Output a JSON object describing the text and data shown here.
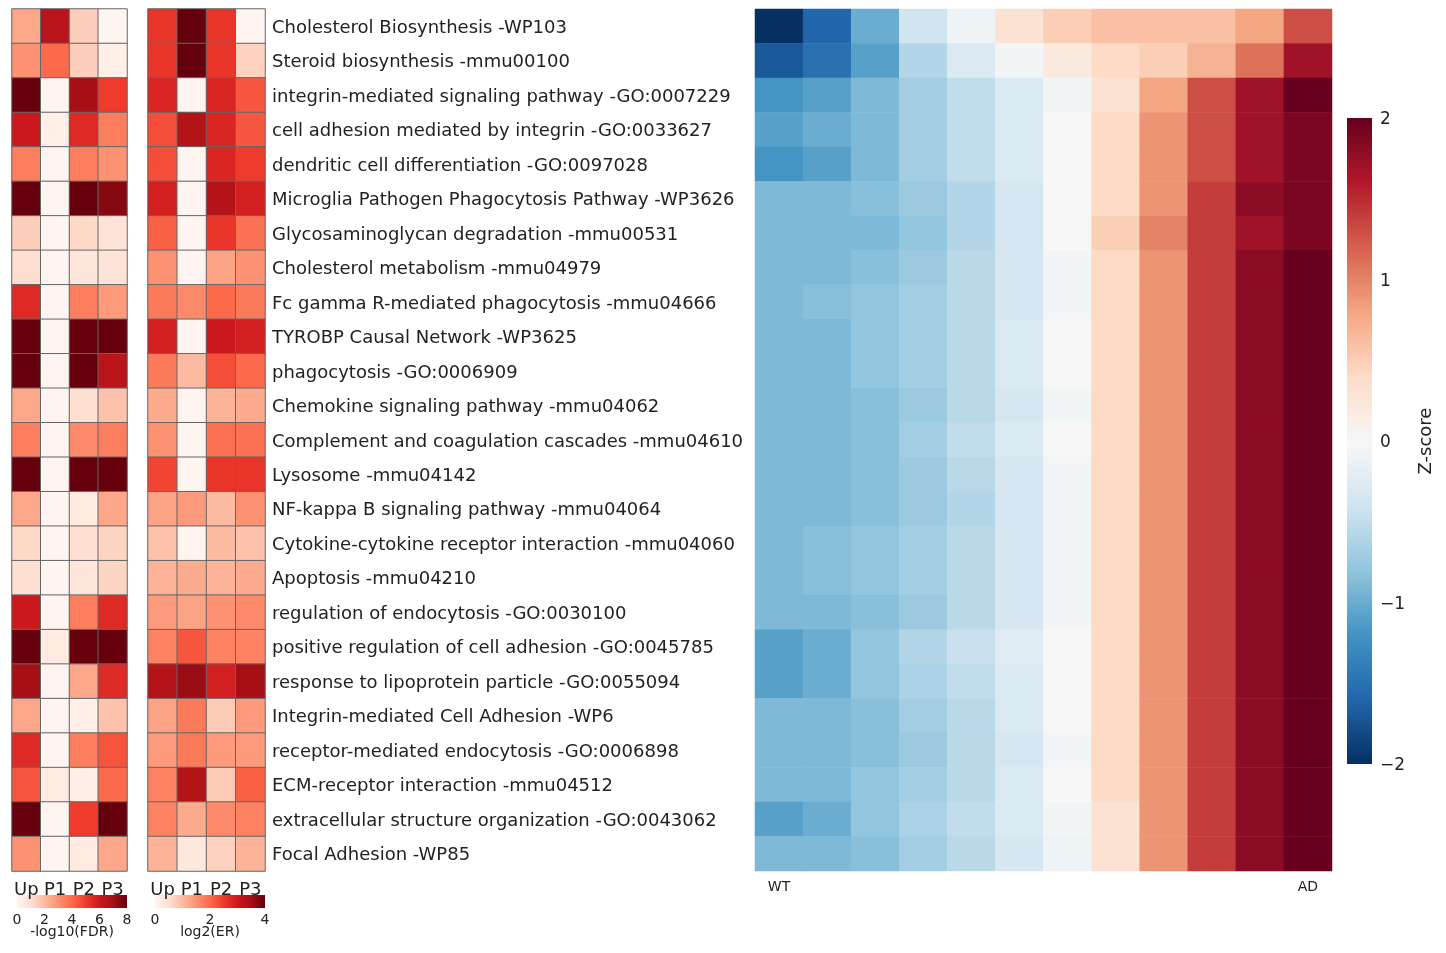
{
  "chart_data": [
    {
      "type": "heatmap",
      "categories": [
        "Up",
        "P1",
        "P2",
        "P3"
      ],
      "y_categories": [
        null,
        null,
        null,
        null,
        null,
        null,
        null,
        null,
        null,
        null,
        null,
        null,
        null,
        null,
        null,
        null,
        null,
        null,
        null,
        null,
        null,
        null,
        null,
        null,
        null
      ],
      "tick_labels": "x",
      "clabel": "-log10(FDR)",
      "clim": [
        0,
        8
      ],
      "cticks": [
        0,
        2,
        4,
        6,
        8
      ],
      "cells": [
        [
          2.5,
          6.5,
          1.5,
          0
        ],
        [
          3,
          4,
          1.5,
          0.3
        ],
        [
          8,
          0,
          7,
          5
        ],
        [
          6,
          0.3,
          5.5,
          3.5
        ],
        [
          3.5,
          0,
          3.5,
          3
        ],
        [
          8,
          0,
          8,
          7.5
        ],
        [
          1.5,
          0,
          1.2,
          0.8
        ],
        [
          1,
          0,
          0.7,
          0.8
        ],
        [
          5.5,
          0,
          3.5,
          2.8
        ],
        [
          8,
          0,
          8,
          8
        ],
        [
          8,
          0,
          8,
          6.5
        ],
        [
          2.5,
          0,
          1,
          1.8
        ],
        [
          3.5,
          0,
          3.2,
          3.5
        ],
        [
          8,
          0,
          8,
          8
        ],
        [
          2.5,
          0,
          0.5,
          2.5
        ],
        [
          1.2,
          0,
          1,
          1.3
        ],
        [
          1,
          0,
          0.7,
          1.3
        ],
        [
          6,
          0,
          3.5,
          5.5
        ],
        [
          8,
          0.5,
          8,
          8
        ],
        [
          7,
          0,
          2.5,
          5.5
        ],
        [
          2.5,
          0,
          0.3,
          1.8
        ],
        [
          5.5,
          0,
          3.5,
          4.5
        ],
        [
          4.5,
          0.5,
          0.3,
          4
        ],
        [
          8,
          0,
          5,
          8
        ],
        [
          3,
          0,
          0.5,
          2.5
        ]
      ]
    },
    {
      "type": "heatmap",
      "categories": [
        "Up",
        "P1",
        "P2",
        "P3"
      ],
      "y_categories": [
        "Cholesterol Biosynthesis -WP103",
        "Steroid biosynthesis -mmu00100",
        "integrin-mediated signaling pathway -GO:0007229",
        "cell adhesion mediated by integrin -GO:0033627",
        "dendritic cell differentiation -GO:0097028",
        "Microglia Pathogen Phagocytosis Pathway -WP3626",
        "Glycosaminoglycan degradation -mmu00531",
        "Cholesterol metabolism -mmu04979",
        "Fc gamma R-mediated phagocytosis -mmu04666",
        "TYROBP Causal Network -WP3625",
        "phagocytosis -GO:0006909",
        "Chemokine signaling pathway -mmu04062",
        "Complement and coagulation cascades -mmu04610",
        "Lysosome -mmu04142",
        "NF-kappa B signaling pathway -mmu04064",
        "Cytokine-cytokine receptor interaction -mmu04060",
        "Apoptosis -mmu04210",
        "regulation of endocytosis -GO:0030100",
        "positive regulation of cell adhesion -GO:0045785",
        "response to lipoprotein particle -GO:0055094",
        "Integrin-mediated Cell Adhesion -WP6",
        "receptor-mediated endocytosis -GO:0006898",
        "ECM-receptor interaction -mmu04512",
        "extracellular structure organization -GO:0043062",
        "Focal Adhesion -WP85"
      ],
      "clabel": "log2(ER)",
      "clim": [
        0,
        4
      ],
      "cticks": [
        0,
        2,
        4
      ],
      "cells": [
        [
          2.6,
          4,
          2.6,
          0
        ],
        [
          2.6,
          4,
          2.6,
          0.7
        ],
        [
          2.8,
          0,
          2.8,
          2.2
        ],
        [
          2.3,
          3.3,
          2.8,
          2.2
        ],
        [
          2.3,
          0,
          2.8,
          2.5
        ],
        [
          2.9,
          0,
          3.3,
          2.9
        ],
        [
          2.1,
          0,
          2.6,
          1.9
        ],
        [
          1.5,
          0,
          1.3,
          1.5
        ],
        [
          1.8,
          1.6,
          2,
          1.8
        ],
        [
          2.9,
          0,
          3,
          2.9
        ],
        [
          1.8,
          1,
          2.3,
          2
        ],
        [
          1.2,
          0,
          1.1,
          1.2
        ],
        [
          1.5,
          0,
          1.9,
          1.9
        ],
        [
          2.4,
          0,
          2.6,
          2.6
        ],
        [
          1.3,
          1.4,
          1,
          1.5
        ],
        [
          0.9,
          0,
          1,
          0.9
        ],
        [
          1.1,
          1.2,
          1.1,
          1.2
        ],
        [
          1.4,
          1.3,
          1.5,
          1.6
        ],
        [
          1.7,
          2.2,
          1.7,
          1.7
        ],
        [
          3.3,
          3.6,
          2.9,
          3.5
        ],
        [
          1.3,
          1.8,
          0.8,
          1.4
        ],
        [
          1.4,
          1.8,
          1.4,
          1.4
        ],
        [
          1.7,
          3.3,
          0.8,
          2.1
        ],
        [
          1.7,
          1.2,
          1.6,
          1.7
        ],
        [
          1.1,
          0.3,
          0.7,
          1.1
        ]
      ]
    },
    {
      "type": "heatmap",
      "categories": [
        "WT",
        null,
        null,
        null,
        null,
        null,
        null,
        null,
        null,
        null,
        null,
        "AD"
      ],
      "y_categories": [
        null,
        null,
        null,
        null,
        null,
        null,
        null,
        null,
        null,
        null,
        null,
        null,
        null,
        null,
        null,
        null,
        null,
        null,
        null,
        null,
        null,
        null,
        null,
        null,
        null
      ],
      "tick_labels": "x",
      "clabel": "Z-score",
      "clim": [
        -2,
        2
      ],
      "cticks": [
        {
          "value": -2,
          "label": "−2"
        },
        {
          "value": -1,
          "label": "−1"
        },
        0,
        1,
        2
      ],
      "cells": [
        [
          -2,
          -1.6,
          -1,
          -0.4,
          -0.1,
          0.3,
          0.5,
          0.6,
          0.6,
          0.6,
          0.8,
          1.3
        ],
        [
          -1.7,
          -1.5,
          -1.1,
          -0.6,
          -0.3,
          -0.05,
          0.2,
          0.4,
          0.5,
          0.7,
          1.1,
          1.7
        ],
        [
          -1.2,
          -1.1,
          -0.9,
          -0.7,
          -0.5,
          -0.3,
          -0.05,
          0.3,
          0.8,
          1.3,
          1.7,
          2
        ],
        [
          -1.1,
          -1,
          -0.9,
          -0.7,
          -0.5,
          -0.3,
          0,
          0.4,
          0.9,
          1.3,
          1.7,
          1.9
        ],
        [
          -1.2,
          -1.1,
          -0.9,
          -0.7,
          -0.5,
          -0.3,
          0,
          0.4,
          0.9,
          1.3,
          1.7,
          1.9
        ],
        [
          -0.9,
          -0.9,
          -0.85,
          -0.75,
          -0.6,
          -0.35,
          0,
          0.4,
          0.9,
          1.4,
          1.8,
          1.9
        ],
        [
          -0.9,
          -0.9,
          -0.9,
          -0.8,
          -0.6,
          -0.35,
          0,
          0.5,
          1,
          1.4,
          1.7,
          1.9
        ],
        [
          -0.9,
          -0.9,
          -0.85,
          -0.75,
          -0.55,
          -0.35,
          -0.05,
          0.4,
          0.9,
          1.4,
          1.8,
          2
        ],
        [
          -0.9,
          -0.85,
          -0.8,
          -0.7,
          -0.55,
          -0.35,
          -0.05,
          0.4,
          0.9,
          1.4,
          1.8,
          2
        ],
        [
          -0.9,
          -0.9,
          -0.8,
          -0.7,
          -0.55,
          -0.3,
          0,
          0.4,
          0.9,
          1.4,
          1.8,
          2
        ],
        [
          -0.9,
          -0.9,
          -0.8,
          -0.7,
          -0.55,
          -0.3,
          0,
          0.4,
          0.9,
          1.4,
          1.8,
          2
        ],
        [
          -0.9,
          -0.9,
          -0.85,
          -0.75,
          -0.55,
          -0.35,
          -0.05,
          0.4,
          0.9,
          1.4,
          1.8,
          2
        ],
        [
          -0.9,
          -0.9,
          -0.85,
          -0.7,
          -0.5,
          -0.3,
          0,
          0.4,
          0.9,
          1.4,
          1.8,
          2
        ],
        [
          -0.9,
          -0.9,
          -0.85,
          -0.75,
          -0.55,
          -0.35,
          -0.05,
          0.4,
          0.9,
          1.4,
          1.8,
          2
        ],
        [
          -0.9,
          -0.9,
          -0.85,
          -0.75,
          -0.6,
          -0.35,
          -0.05,
          0.4,
          0.9,
          1.4,
          1.8,
          2
        ],
        [
          -0.9,
          -0.85,
          -0.8,
          -0.7,
          -0.55,
          -0.35,
          -0.05,
          0.4,
          0.9,
          1.4,
          1.8,
          2
        ],
        [
          -0.9,
          -0.85,
          -0.8,
          -0.7,
          -0.55,
          -0.35,
          -0.05,
          0.4,
          0.9,
          1.4,
          1.8,
          2
        ],
        [
          -0.9,
          -0.9,
          -0.85,
          -0.75,
          -0.55,
          -0.35,
          -0.05,
          0.4,
          0.9,
          1.4,
          1.8,
          2
        ],
        [
          -1.1,
          -1,
          -0.8,
          -0.6,
          -0.45,
          -0.25,
          0,
          0.4,
          0.9,
          1.4,
          1.8,
          2
        ],
        [
          -1.1,
          -1,
          -0.8,
          -0.65,
          -0.5,
          -0.3,
          0,
          0.4,
          0.9,
          1.4,
          1.8,
          2
        ],
        [
          -0.9,
          -0.9,
          -0.85,
          -0.7,
          -0.55,
          -0.3,
          0,
          0.4,
          0.9,
          1.4,
          1.8,
          2
        ],
        [
          -0.9,
          -0.9,
          -0.85,
          -0.75,
          -0.55,
          -0.35,
          -0.05,
          0.4,
          0.9,
          1.4,
          1.8,
          2
        ],
        [
          -0.9,
          -0.9,
          -0.8,
          -0.7,
          -0.55,
          -0.3,
          0,
          0.4,
          0.9,
          1.4,
          1.8,
          2
        ],
        [
          -1.1,
          -1,
          -0.8,
          -0.65,
          -0.5,
          -0.3,
          -0.05,
          0.3,
          0.9,
          1.4,
          1.8,
          2
        ],
        [
          -0.9,
          -0.9,
          -0.85,
          -0.7,
          -0.55,
          -0.35,
          -0.1,
          0.3,
          0.9,
          1.4,
          1.8,
          2
        ]
      ]
    }
  ]
}
